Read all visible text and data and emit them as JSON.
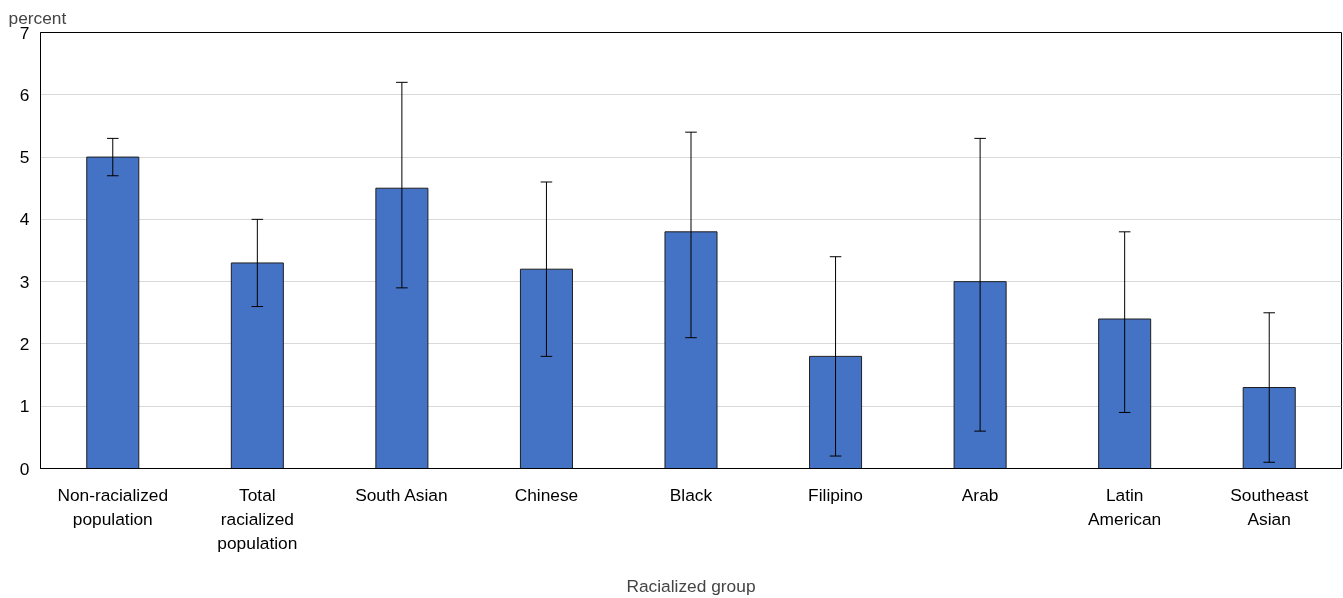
{
  "chart_data": {
    "type": "bar",
    "ylabel": "percent",
    "xlabel": "Racialized group",
    "categories": [
      "Non-racialized\npopulation",
      "Total\nracialized\npopulation",
      "South Asian",
      "Chinese",
      "Black",
      "Filipino",
      "Arab",
      "Latin\nAmerican",
      "Southeast\nAsian"
    ],
    "values": [
      5.0,
      3.3,
      4.5,
      3.2,
      3.8,
      1.8,
      3.0,
      2.4,
      1.3
    ],
    "errors": [
      [
        4.7,
        5.3
      ],
      [
        2.6,
        4.0
      ],
      [
        2.9,
        6.2
      ],
      [
        1.8,
        4.6
      ],
      [
        2.1,
        5.4
      ],
      [
        0.2,
        3.4
      ],
      [
        0.6,
        5.3
      ],
      [
        0.9,
        3.8
      ],
      [
        0.1,
        2.5
      ]
    ],
    "color": "#4472c4",
    "ylim": [
      0,
      7
    ],
    "yticks": [
      0,
      1,
      2,
      3,
      4,
      5,
      6,
      7
    ],
    "grid": "y"
  }
}
